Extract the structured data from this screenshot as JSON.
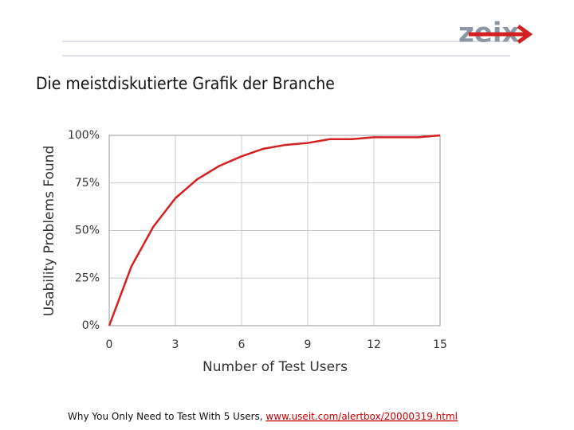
{
  "logo": "zeix",
  "caption": {
    "text": "Why You Only Need to Test With 5 Users, ",
    "link": "www.useit.com/alertbox/20000319.html"
  },
  "chart_data": {
    "type": "line",
    "title": "Die meistdiskutierte Grafik der Branche",
    "x_label": "Number of Test Users",
    "y_label": "Usability Problems Found",
    "x": [
      0,
      1,
      2,
      3,
      4,
      5,
      6,
      7,
      8,
      9,
      10,
      11,
      12,
      13,
      14,
      15
    ],
    "series": [
      {
        "color": "#d42020",
        "values": [
          0,
          31,
          52,
          67,
          77,
          84,
          89,
          93,
          95,
          96,
          98,
          98,
          99,
          99,
          99,
          100
        ]
      }
    ],
    "xlim": [
      0,
      15
    ],
    "xticks": [
      0,
      3,
      6,
      9,
      12,
      15
    ],
    "ylim": [
      0,
      100
    ],
    "yticks": [
      {
        "value": 0,
        "label": "0%"
      },
      {
        "value": 25,
        "label": "25%"
      },
      {
        "value": 50,
        "label": "50%"
      },
      {
        "value": 75,
        "label": "75%"
      },
      {
        "value": 100,
        "label": "100%"
      }
    ],
    "grid": true
  }
}
